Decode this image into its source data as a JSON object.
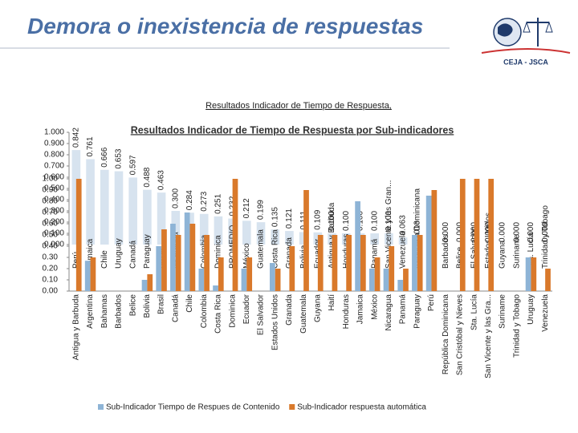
{
  "header": {
    "title": "Demora o inexistencia de respuestas",
    "logo_text": "CEJA - JSCA"
  },
  "chart_data": [
    {
      "type": "bar",
      "title": "Resultados Indicador de  Tiempo de Respuesta,",
      "categories": [
        "Perú",
        "Jamaica",
        "Chile",
        "Uruguay",
        "Canadá",
        "Paraguay",
        "Brasil",
        "Nicaragua",
        "Argentina",
        "Colombia",
        "Dominica",
        "PROMEDIO",
        "México",
        "Guatemala",
        "Costa Rica",
        "Granada",
        "Bolivia",
        "Ecuador",
        "Antigua y Barbuda",
        "Honduras",
        "Haití",
        "Panamá",
        "San Vicente y las Gran...",
        "Venezuela",
        "República Dominicana",
        "Bahamas",
        "Barbados",
        "Belice",
        "El Salvador",
        "Estados Unidos",
        "Guyana",
        "Suriname",
        "Sta. Lucía",
        "Trinidad y Tobago"
      ],
      "values": [
        0.842,
        0.761,
        0.666,
        0.653,
        0.597,
        0.488,
        0.463,
        0.3,
        0.284,
        0.273,
        0.251,
        0.232,
        0.212,
        0.199,
        0.135,
        0.121,
        0.111,
        0.109,
        0.1,
        0.1,
        0.1,
        0.1,
        0.1,
        0.063,
        0.013,
        0,
        0,
        0,
        0,
        0,
        0,
        0,
        0,
        0
      ],
      "value_labels": [
        "0.842",
        "0.761",
        "0.666",
        "0.653",
        "0.597",
        "0.488",
        "0.463",
        "0.300",
        "0.284",
        "0.273",
        "0.251",
        "0.232",
        "0.212",
        "0.199",
        "0.135",
        "0.121",
        "0.111",
        "0.109",
        "0.100",
        "0.100",
        "0.100",
        "0.100",
        "0.100",
        "0.063",
        "0.013",
        "0.000",
        "0.000",
        "0.000",
        "0.000",
        "0.000",
        "0.000",
        "0.000",
        "0.000",
        "0.000"
      ],
      "color": "#c9d9ea",
      "ylim": [
        0,
        1
      ],
      "yticks": [
        {
          "value": 0,
          "label": "0.000"
        },
        {
          "value": 0.1,
          "label": "0.100"
        },
        {
          "value": 0.2,
          "label": "0.200"
        },
        {
          "value": 0.3,
          "label": "0.300"
        },
        {
          "value": 0.4,
          "label": "0.400"
        },
        {
          "value": 0.5,
          "label": "0.500"
        },
        {
          "value": 0.6,
          "label": "0.600"
        },
        {
          "value": 0.7,
          "label": "0.700"
        },
        {
          "value": 0.8,
          "label": "0.800"
        },
        {
          "value": 0.9,
          "label": "0.900"
        },
        {
          "value": 1,
          "label": "1.000"
        }
      ]
    },
    {
      "type": "grouped-bar",
      "title": "Resultados Indicador de Tiempo de Respuesta por Sub-indicadores",
      "categories": [
        "Antigua y Barbuda",
        "Argentina",
        "Bahamas",
        "Barbados",
        "Belice",
        "Bolivia",
        "Brasil",
        "Canadá",
        "Chile",
        "Colombia",
        "Costa Rica",
        "Dominica",
        "Ecuador",
        "El Salvador",
        "Estados Unidos",
        "Granada",
        "Guatemala",
        "Guyana",
        "Haití",
        "Honduras",
        "Jamaica",
        "México",
        "Nicaragua",
        "Panamá",
        "Paraguay",
        "Perú",
        "República Dominicana",
        "San Cristóbal y Nieves",
        "Sta. Lucía",
        "San Vicente y las Gra...",
        "Suriname",
        "Trinidad y Tobago",
        "Uruguay",
        "Venezuela"
      ],
      "series": [
        {
          "name": "Sub-Indicador Tiempo de Respues de Contenido",
          "color": "#8eb4d6",
          "values": [
            0,
            0.27,
            0,
            0,
            0,
            0.1,
            0.4,
            0.6,
            0.7,
            0.2,
            0.05,
            0,
            0.2,
            0,
            0.25,
            0,
            0,
            0,
            0,
            0,
            0.8,
            0.2,
            0.2,
            0.1,
            0.5,
            0.85,
            0,
            0,
            0,
            0,
            0,
            0,
            0.3,
            0
          ]
        },
        {
          "name": "Sub-Indicador respuesta automática",
          "color": "#d9792b",
          "values": [
            1,
            0.3,
            0,
            0,
            0,
            0.15,
            0.55,
            0.5,
            0.6,
            0.5,
            0.3,
            1,
            0.3,
            0,
            0.2,
            0.4,
            0.9,
            0.5,
            0.5,
            0.5,
            0.5,
            0.3,
            0.4,
            0.2,
            0.5,
            0.9,
            0,
            1,
            1,
            1,
            0,
            0,
            0.3,
            0.2
          ]
        }
      ],
      "ylim": [
        0,
        1
      ],
      "yticks": [
        {
          "value": 0,
          "label": "0.00"
        },
        {
          "value": 0.1,
          "label": "0.10"
        },
        {
          "value": 0.2,
          "label": "0.20"
        },
        {
          "value": 0.3,
          "label": "0.30"
        },
        {
          "value": 0.4,
          "label": "0.40"
        },
        {
          "value": 0.5,
          "label": "0.50"
        },
        {
          "value": 0.6,
          "label": "0.60"
        },
        {
          "value": 0.7,
          "label": "0.70"
        },
        {
          "value": 0.8,
          "label": "0.80"
        },
        {
          "value": 0.9,
          "label": "0.90"
        },
        {
          "value": 1,
          "label": "1.00"
        }
      ],
      "legend": "bottom"
    }
  ]
}
